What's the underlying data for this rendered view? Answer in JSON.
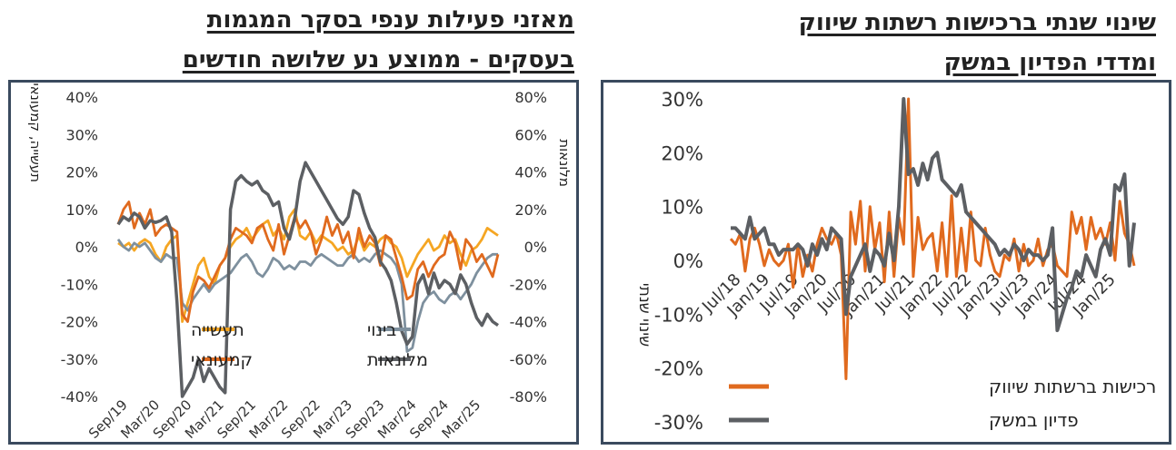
{
  "colors": {
    "orange": "#E06A1E",
    "gray": "#5C5F63",
    "yellow": "#F5A623",
    "steel": "#7E909E",
    "border": "#3a4a5e"
  },
  "left": {
    "title_line1": "מאזני פעילות ענפי בסקר המגמות",
    "title_line2": "בעסקים - ממוצע נע שלושה חודשים"
  },
  "right": {
    "title_line1": "שינוי שנתי ברכישות רשתות שיווק",
    "title_line2": "ומדדי הפדיון במשק"
  },
  "chart_data": [
    {
      "type": "line",
      "title": "מאזני פעילות ענפי בסקר המגמות בעסקים - ממוצע נע שלושה חודשים",
      "ylabel": "תעשייה, קמעונאי, בינוי",
      "y2label": "מלונאות",
      "ylim": [
        -40,
        40
      ],
      "y2lim": [
        -80,
        80
      ],
      "yticks": [
        "40%",
        "30%",
        "20%",
        "10%",
        "0%",
        "-10%",
        "-20%",
        "-30%",
        "-40%"
      ],
      "y2ticks": [
        "80%",
        "60%",
        "40%",
        "20%",
        "0%",
        "-20%",
        "-40%",
        "-60%",
        "-80%"
      ],
      "xticks": [
        "Sep/19",
        "Mar/20",
        "Sep/20",
        "Mar/21",
        "Sep/21",
        "Mar/22",
        "Sep/22",
        "Mar/23",
        "Sep/23",
        "Mar/24",
        "Sep/24",
        "Mar/25"
      ],
      "x_start": "Aug/19",
      "x_end": "May/25",
      "legend_position": "bottom-left",
      "series": [
        {
          "name": "תעשייה",
          "color": "yellow",
          "axis": "left",
          "values": [
            1,
            0,
            1,
            -1,
            1,
            2,
            1,
            -2,
            -4,
            0,
            2,
            3,
            -20,
            -15,
            -10,
            -5,
            -3,
            -8,
            -10,
            -5,
            -3,
            0,
            2,
            3,
            5,
            2,
            4,
            6,
            7,
            3,
            5,
            2,
            8,
            10,
            3,
            2,
            4,
            1,
            3,
            2,
            1,
            -1,
            0,
            -2,
            -1,
            3,
            -1,
            1,
            0,
            2,
            3,
            1,
            0,
            -3,
            -8,
            -5,
            -2,
            0,
            2,
            -1,
            0,
            3,
            1,
            2,
            -2,
            -5,
            -1,
            0,
            2,
            5,
            4,
            3
          ]
        },
        {
          "name": "בינוי",
          "color": "steel",
          "axis": "left",
          "values": [
            2,
            0,
            -1,
            1,
            0,
            1,
            -1,
            -3,
            -4,
            -2,
            -3,
            -3,
            -15,
            -17,
            -14,
            -12,
            -10,
            -12,
            -10,
            -9,
            -8,
            -7,
            -5,
            -3,
            -2,
            -4,
            -7,
            -8,
            -6,
            -3,
            -4,
            -6,
            -5,
            -6,
            -4,
            -4,
            -5,
            -3,
            -2,
            -3,
            -4,
            -5,
            -5,
            -3,
            -2,
            -4,
            -3,
            -4,
            -2,
            -1,
            -2,
            -3,
            -5,
            -10,
            -28,
            -27,
            -20,
            -15,
            -13,
            -12,
            -14,
            -15,
            -13,
            -12,
            -14,
            -12,
            -10,
            -7,
            -5,
            -3,
            -2,
            -2
          ]
        },
        {
          "name": "קמעונאי",
          "color": "orange",
          "axis": "left",
          "values": [
            6,
            10,
            12,
            5,
            9,
            6,
            10,
            3,
            5,
            6,
            5,
            4,
            -18,
            -20,
            -12,
            -8,
            -9,
            -11,
            -8,
            -5,
            -3,
            2,
            5,
            4,
            3,
            1,
            5,
            6,
            2,
            -1,
            6,
            -2,
            3,
            8,
            5,
            7,
            4,
            -2,
            2,
            8,
            3,
            6,
            1,
            4,
            -3,
            5,
            0,
            3,
            1,
            -5,
            3,
            2,
            -3,
            -8,
            -14,
            -13,
            -6,
            -4,
            -8,
            -5,
            -3,
            -2,
            4,
            1,
            -6,
            2,
            0,
            -4,
            -2,
            -5,
            -8,
            -2
          ]
        },
        {
          "name": "מלונאות",
          "color": "gray",
          "axis": "right",
          "values": [
            12,
            16,
            14,
            18,
            16,
            10,
            14,
            13,
            14,
            16,
            8,
            -30,
            -80,
            -75,
            -70,
            -60,
            -72,
            -65,
            -70,
            -75,
            -78,
            20,
            35,
            38,
            35,
            33,
            35,
            30,
            28,
            22,
            24,
            10,
            4,
            15,
            35,
            45,
            40,
            35,
            30,
            25,
            20,
            15,
            12,
            16,
            30,
            28,
            18,
            10,
            5,
            -8,
            -12,
            -18,
            -30,
            -45,
            -52,
            -48,
            -20,
            -15,
            -25,
            -14,
            -22,
            -18,
            -20,
            -25,
            -15,
            -20,
            -30,
            -38,
            -42,
            -36,
            -40,
            -42
          ]
        }
      ]
    },
    {
      "type": "line",
      "title": "שינוי שנתי ברכישות רשתות שיווק ומדדי הפדיון במשק",
      "ylabel": "שינוי שנתי",
      "ylim": [
        -30,
        30
      ],
      "yticks": [
        "30%",
        "20%",
        "10%",
        "0%",
        "-10%",
        "-20%",
        "-30%"
      ],
      "xticks": [
        "Jul/18",
        "Jan/19",
        "Jul/19",
        "Jan/20",
        "Jul/20",
        "Jan/21",
        "Jul/21",
        "Jan/22",
        "Jul/22",
        "Jan/23",
        "Jul/23",
        "Jan/24",
        "Jul/24",
        "Jan/25"
      ],
      "x_start": "Jul/18",
      "x_end": "Feb/25",
      "legend_position": "bottom-right",
      "series": [
        {
          "name": "רכישות ברשתות שיווק",
          "color": "orange",
          "axis": "left",
          "values": [
            4,
            3,
            5,
            -2,
            4,
            6,
            3,
            -1,
            2,
            0,
            -1,
            0,
            3,
            -5,
            3,
            -3,
            1,
            -2,
            3,
            6,
            4,
            3,
            5,
            1,
            -22,
            9,
            3,
            11,
            -2,
            10,
            2,
            7,
            -4,
            9,
            -3,
            8,
            3,
            30,
            -3,
            8,
            2,
            4,
            5,
            -2,
            7,
            -3,
            12,
            -3,
            6,
            -2,
            9,
            0,
            -1,
            6,
            1,
            -2,
            -3,
            1,
            0,
            4,
            -2,
            3,
            -1,
            0,
            4,
            -1,
            2,
            3,
            -1,
            -2,
            -3,
            9,
            5,
            8,
            2,
            8,
            4,
            6,
            3,
            7,
            0,
            11,
            5,
            3,
            -1
          ]
        },
        {
          "name": "פדיון במשק",
          "color": "gray",
          "axis": "left",
          "values": [
            6,
            6,
            5,
            4,
            8,
            4,
            5,
            6,
            3,
            3,
            1,
            2,
            2,
            2,
            3,
            2,
            -1,
            3,
            1,
            4,
            2,
            6,
            5,
            4,
            -10,
            -3,
            -1,
            1,
            3,
            -2,
            2,
            1,
            -1,
            5,
            0,
            10,
            30,
            16,
            17,
            14,
            18,
            15,
            19,
            20,
            15,
            14,
            13,
            12,
            14,
            9,
            8,
            7,
            6,
            5,
            4,
            3,
            1,
            2,
            1,
            3,
            2,
            0,
            2,
            1,
            1,
            0,
            1,
            6,
            -13,
            -10,
            -7,
            -5,
            -2,
            -3,
            1,
            -1,
            -3,
            2,
            4,
            1,
            14,
            13,
            16,
            -1,
            7
          ]
        }
      ]
    }
  ]
}
